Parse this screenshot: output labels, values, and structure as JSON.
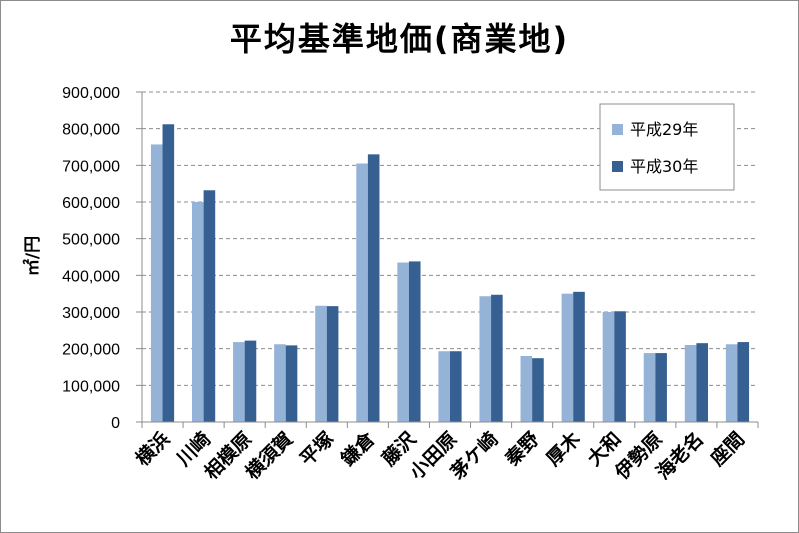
{
  "chart_data": {
    "type": "bar",
    "title": "平均基準地価(商業地)",
    "ylabel": "㎡/円",
    "xlabel": "",
    "ylim": [
      0,
      900000
    ],
    "yticks": [
      "0",
      "100,000",
      "200,000",
      "300,000",
      "400,000",
      "500,000",
      "600,000",
      "700,000",
      "800,000",
      "900,000"
    ],
    "grid": true,
    "legend_position": "top-right",
    "categories": [
      "横浜",
      "川崎",
      "相模原",
      "横須賀",
      "平塚",
      "鎌倉",
      "藤沢",
      "小田原",
      "茅ケ崎",
      "秦野",
      "厚木",
      "大和",
      "伊勢原",
      "海老名",
      "座間"
    ],
    "series": [
      {
        "name": "平成29年",
        "color": "#95b3d7",
        "values": [
          757000,
          600000,
          218000,
          212000,
          317000,
          705000,
          435000,
          193000,
          343000,
          180000,
          350000,
          300000,
          188000,
          210000,
          212000
        ]
      },
      {
        "name": "平成30年",
        "color": "#376092",
        "values": [
          812000,
          632000,
          222000,
          209000,
          316000,
          730000,
          438000,
          193000,
          347000,
          174000,
          355000,
          302000,
          188000,
          215000,
          218000
        ]
      }
    ]
  }
}
